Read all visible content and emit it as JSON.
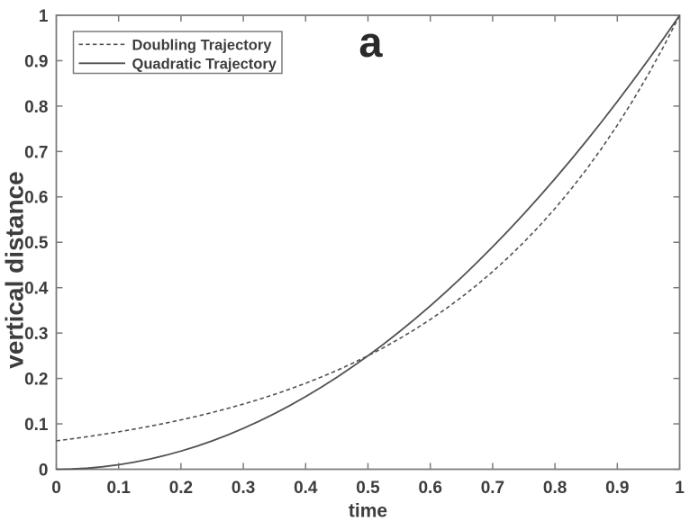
{
  "figure": {
    "annotation": "a",
    "colors": {
      "background": "#ffffff",
      "axis": "#7c7c7c",
      "text": "#3d3d3d",
      "line": "#515151",
      "legend_border": "#7c7c7c",
      "annotation_text": "#2a2a2a"
    }
  },
  "chart_data": {
    "type": "line",
    "title": "",
    "xlabel": "time",
    "ylabel": "vertical distance",
    "xlim": [
      0,
      1
    ],
    "ylim": [
      0,
      1
    ],
    "xticks": [
      0,
      0.1,
      0.2,
      0.3,
      0.4,
      0.5,
      0.6,
      0.7,
      0.8,
      0.9,
      1
    ],
    "xtick_labels": [
      "0",
      "0.1",
      "0.2",
      "0.3",
      "0.4",
      "0.5",
      "0.6",
      "0.7",
      "0.8",
      "0.9",
      "1"
    ],
    "yticks": [
      0,
      0.1,
      0.2,
      0.3,
      0.4,
      0.5,
      0.6,
      0.7,
      0.8,
      0.9,
      1
    ],
    "ytick_labels": [
      "0",
      "0.1",
      "0.2",
      "0.3",
      "0.4",
      "0.5",
      "0.6",
      "0.7",
      "0.8",
      "0.9",
      "1"
    ],
    "grid": false,
    "box": true,
    "legend_position": "top-left",
    "annotation": "a",
    "x": [
      0,
      0.025,
      0.05,
      0.075,
      0.1,
      0.125,
      0.15,
      0.175,
      0.2,
      0.225,
      0.25,
      0.275,
      0.3,
      0.325,
      0.35,
      0.375,
      0.4,
      0.425,
      0.45,
      0.475,
      0.5,
      0.525,
      0.55,
      0.575,
      0.6,
      0.625,
      0.65,
      0.675,
      0.7,
      0.725,
      0.75,
      0.775,
      0.8,
      0.825,
      0.85,
      0.875,
      0.9,
      0.925,
      0.95,
      0.975,
      1.0
    ],
    "series": [
      {
        "name": "Doubling Trajectory",
        "style": "dashed",
        "values": [
          0.0625,
          0.067,
          0.0718,
          0.0769,
          0.0825,
          0.0884,
          0.0947,
          0.1015,
          0.1088,
          0.1166,
          0.125,
          0.134,
          0.1436,
          0.1539,
          0.1649,
          0.1768,
          0.1895,
          0.2031,
          0.2176,
          0.2333,
          0.25,
          0.2679,
          0.2872,
          0.3078,
          0.3299,
          0.3536,
          0.3789,
          0.4061,
          0.4353,
          0.4665,
          0.5,
          0.5359,
          0.5743,
          0.6156,
          0.6598,
          0.7071,
          0.7579,
          0.8123,
          0.8706,
          0.933,
          1.0
        ]
      },
      {
        "name": "Quadratic Trajectory",
        "style": "solid",
        "values": [
          0.0,
          0.0006,
          0.0025,
          0.0056,
          0.01,
          0.0156,
          0.0225,
          0.0306,
          0.04,
          0.0506,
          0.0625,
          0.0756,
          0.09,
          0.1056,
          0.1225,
          0.1406,
          0.16,
          0.1806,
          0.2025,
          0.2256,
          0.25,
          0.2756,
          0.3025,
          0.3306,
          0.36,
          0.3906,
          0.4225,
          0.4556,
          0.49,
          0.5256,
          0.5625,
          0.6006,
          0.64,
          0.6806,
          0.7225,
          0.7656,
          0.81,
          0.8556,
          0.9025,
          0.9506,
          1.0
        ]
      }
    ]
  }
}
